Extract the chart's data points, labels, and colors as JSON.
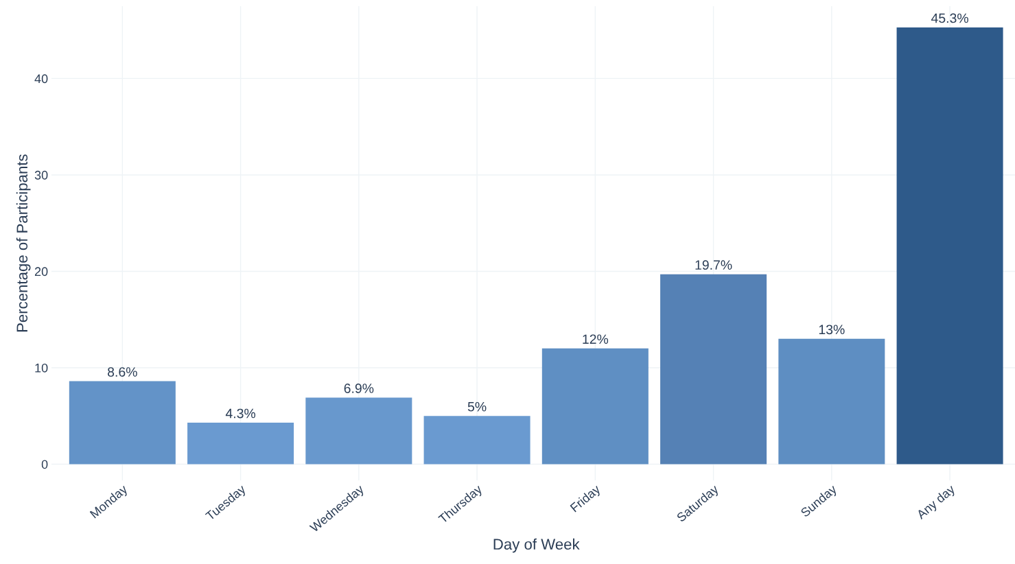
{
  "chart_data": {
    "type": "bar",
    "xlabel": "Day of Week",
    "ylabel": "Percentage of Participants",
    "categories": [
      "Monday",
      "Tuesday",
      "Wednesday",
      "Thursday",
      "Friday",
      "Saturday",
      "Sunday",
      "Any day"
    ],
    "values": [
      8.6,
      4.3,
      6.9,
      5,
      12,
      19.7,
      13,
      45.3
    ],
    "colors": [
      "#6393c8",
      "#6a9ad0",
      "#6898cd",
      "#6a9ad0",
      "#5f8fc3",
      "#5581b5",
      "#5e8ec2",
      "#2e5a8a"
    ],
    "value_labels": [
      "8.6%",
      "4.3%",
      "6.9%",
      "5%",
      "12%",
      "19.7%",
      "13%",
      "45.3%"
    ],
    "ylim": [
      -1.7,
      47.5
    ],
    "yticks": [
      0,
      10,
      20,
      30,
      40
    ],
    "grid": true,
    "legend": false
  }
}
